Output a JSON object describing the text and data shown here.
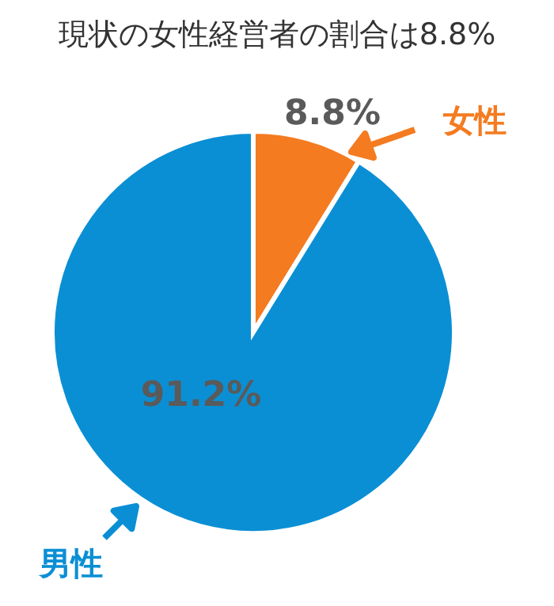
{
  "chart_data": {
    "type": "pie",
    "title": "現状の女性経営者の割合は8.8%",
    "categories": [
      "女性",
      "男性"
    ],
    "values": [
      8.8,
      91.2
    ],
    "colors": [
      "#f47b20",
      "#0a8fd4"
    ],
    "value_labels": [
      "8.8%",
      "91.2%"
    ],
    "legend": false
  }
}
